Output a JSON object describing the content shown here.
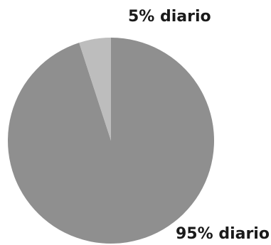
{
  "chart_data": {
    "type": "pie",
    "slices": [
      {
        "label": "95% diario",
        "value": 95,
        "color": "#8f8f8f"
      },
      {
        "label": "5% diario",
        "value": 5,
        "color": "#bdbdbd"
      }
    ],
    "legend": "none"
  }
}
